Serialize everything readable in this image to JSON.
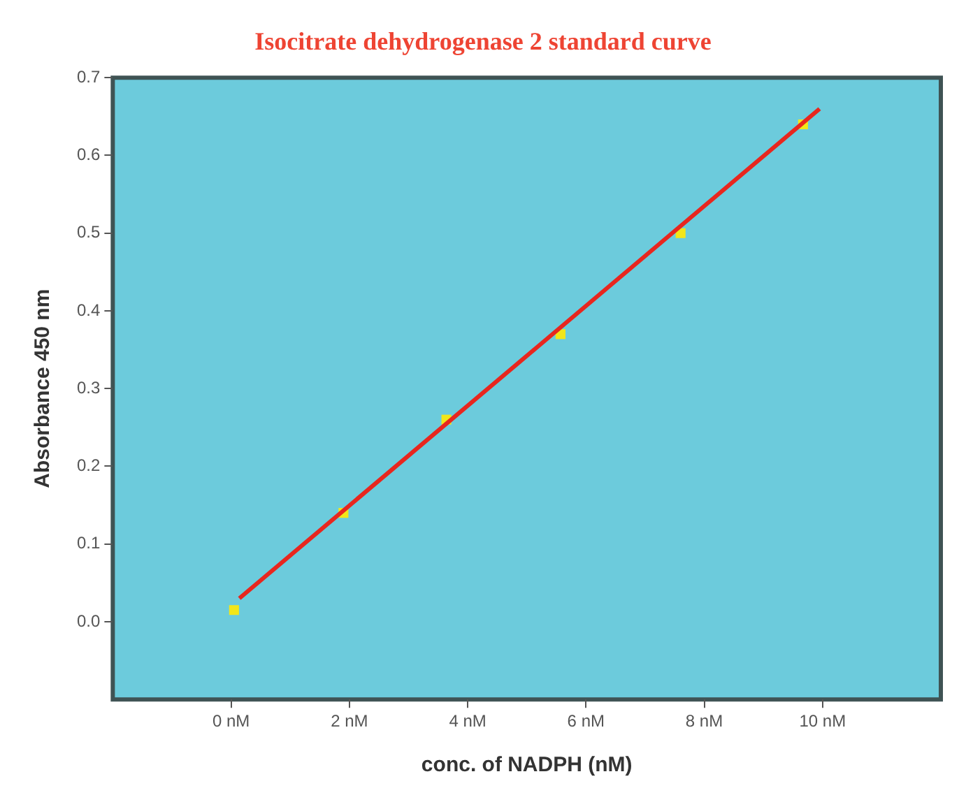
{
  "chart_data": {
    "type": "scatter",
    "title": "Isocitrate dehydrogenase 2 standard curve",
    "xlabel": "conc. of NADPH (nM)",
    "ylabel": "Absorbance 450 nm",
    "series": [
      {
        "type": "line",
        "marker": "none",
        "color": "#e8261e",
        "x": [
          0.14,
          9.95
        ],
        "values": [
          0.03,
          0.66
        ]
      },
      {
        "color": "#f2e61a",
        "x": [
          0.05,
          1.9,
          3.64,
          5.57,
          7.6,
          9.67
        ],
        "values": [
          0.015,
          0.14,
          0.26,
          0.37,
          0.5,
          0.64
        ]
      }
    ],
    "xlim": [
      -2,
      12
    ],
    "xticks": [
      {
        "value": 0,
        "label": "0 nM"
      },
      {
        "value": 2,
        "label": "2 nM"
      },
      {
        "value": 4,
        "label": "4 nM"
      },
      {
        "value": 6,
        "label": "6 nM"
      },
      {
        "value": 8,
        "label": "8 nM"
      },
      {
        "value": 10,
        "label": "10 nM"
      }
    ],
    "ylim": [
      -0.1,
      0.7
    ],
    "yticks": [
      {
        "value": 0,
        "label": "0.0"
      },
      0.1,
      0.2,
      0.3,
      0.4,
      0.5,
      0.6,
      0.7
    ],
    "grid": false,
    "legend": false,
    "marker": "square"
  }
}
